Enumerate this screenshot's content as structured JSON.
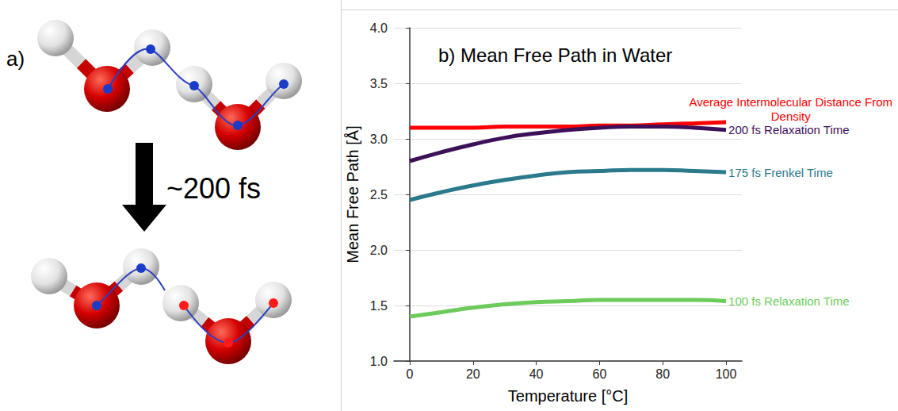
{
  "panel_a": {
    "label": "a)",
    "arrow_label": "~200 fs"
  },
  "chart_data": {
    "type": "line",
    "title": "b) Mean Free Path in Water",
    "x_label": "Temperature [°C]",
    "y_label": "Mean Free Path [Å]",
    "x": [
      0,
      10,
      20,
      30,
      40,
      50,
      60,
      70,
      80,
      90,
      100
    ],
    "series": [
      {
        "name": "Average Intermolecular Distance From Density",
        "color": "#ff0000",
        "values": [
          3.1,
          3.1,
          3.1,
          3.11,
          3.11,
          3.11,
          3.12,
          3.12,
          3.13,
          3.14,
          3.15
        ]
      },
      {
        "name": "200 fs Relaxation Time",
        "color": "#3d1159",
        "values": [
          2.8,
          2.88,
          2.95,
          3.01,
          3.05,
          3.08,
          3.1,
          3.11,
          3.11,
          3.1,
          3.08
        ]
      },
      {
        "name": "175 fs Frenkel Time",
        "color": "#2a7a8c",
        "values": [
          2.45,
          2.52,
          2.58,
          2.63,
          2.67,
          2.7,
          2.71,
          2.72,
          2.72,
          2.71,
          2.7
        ]
      },
      {
        "name": "100 fs Relaxation Time",
        "color": "#6ccb5a",
        "values": [
          1.4,
          1.44,
          1.48,
          1.51,
          1.53,
          1.54,
          1.55,
          1.55,
          1.55,
          1.55,
          1.54
        ]
      }
    ],
    "xlim": [
      -5,
      105
    ],
    "xticks": [
      0,
      20,
      40,
      60,
      80,
      100
    ],
    "ylim": [
      1.0,
      4.0
    ],
    "yticks": [
      {
        "value": 1,
        "label": "1.0"
      },
      1.5,
      {
        "value": 2,
        "label": "2.0"
      },
      2.5,
      {
        "value": 3,
        "label": "3.0"
      },
      3.5,
      {
        "value": 4,
        "label": "4.0"
      }
    ],
    "grid": true
  }
}
